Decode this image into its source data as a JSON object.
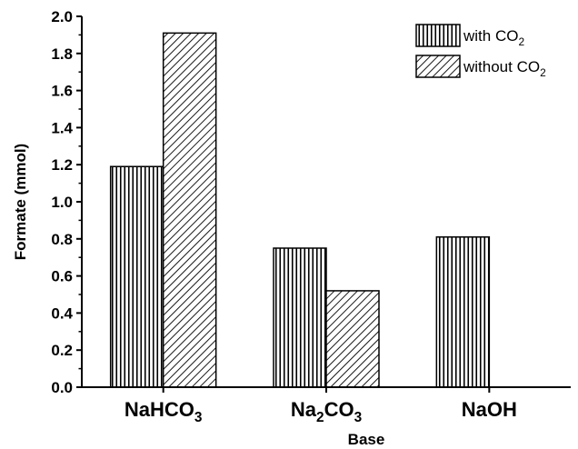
{
  "chart_data": {
    "type": "bar",
    "xlabel": "Base",
    "ylabel": "Formate (mmol)",
    "ylim": [
      0,
      2.0
    ],
    "yticks": [
      "0.0",
      "0.2",
      "0.4",
      "0.6",
      "0.8",
      "1.0",
      "1.2",
      "1.4",
      "1.6",
      "1.8",
      "2.0"
    ],
    "grid": false,
    "legend_position": "top-right",
    "categories": [
      {
        "name": "NaHCO3",
        "parts": [
          {
            "t": "NaHCO"
          },
          {
            "t": "3",
            "sub": true
          }
        ]
      },
      {
        "name": "Na2CO3",
        "parts": [
          {
            "t": "Na"
          },
          {
            "t": "2",
            "sub": true
          },
          {
            "t": "CO"
          },
          {
            "t": "3",
            "sub": true
          }
        ]
      },
      {
        "name": "NaOH",
        "parts": [
          {
            "t": "NaOH"
          }
        ]
      }
    ],
    "series": [
      {
        "name": "with CO2",
        "name_parts": [
          {
            "t": "with CO"
          },
          {
            "t": "2",
            "sub": true
          }
        ],
        "pattern": "vertical-lines",
        "values": [
          1.19,
          0.75,
          0.81
        ]
      },
      {
        "name": "without CO2",
        "name_parts": [
          {
            "t": "without CO"
          },
          {
            "t": "2",
            "sub": true
          }
        ],
        "pattern": "diagonal-lines",
        "values": [
          1.91,
          0.52,
          null
        ]
      }
    ],
    "colors": {
      "bar_stroke": "#000000",
      "pattern_line": "#000000",
      "background": "#ffffff"
    }
  }
}
